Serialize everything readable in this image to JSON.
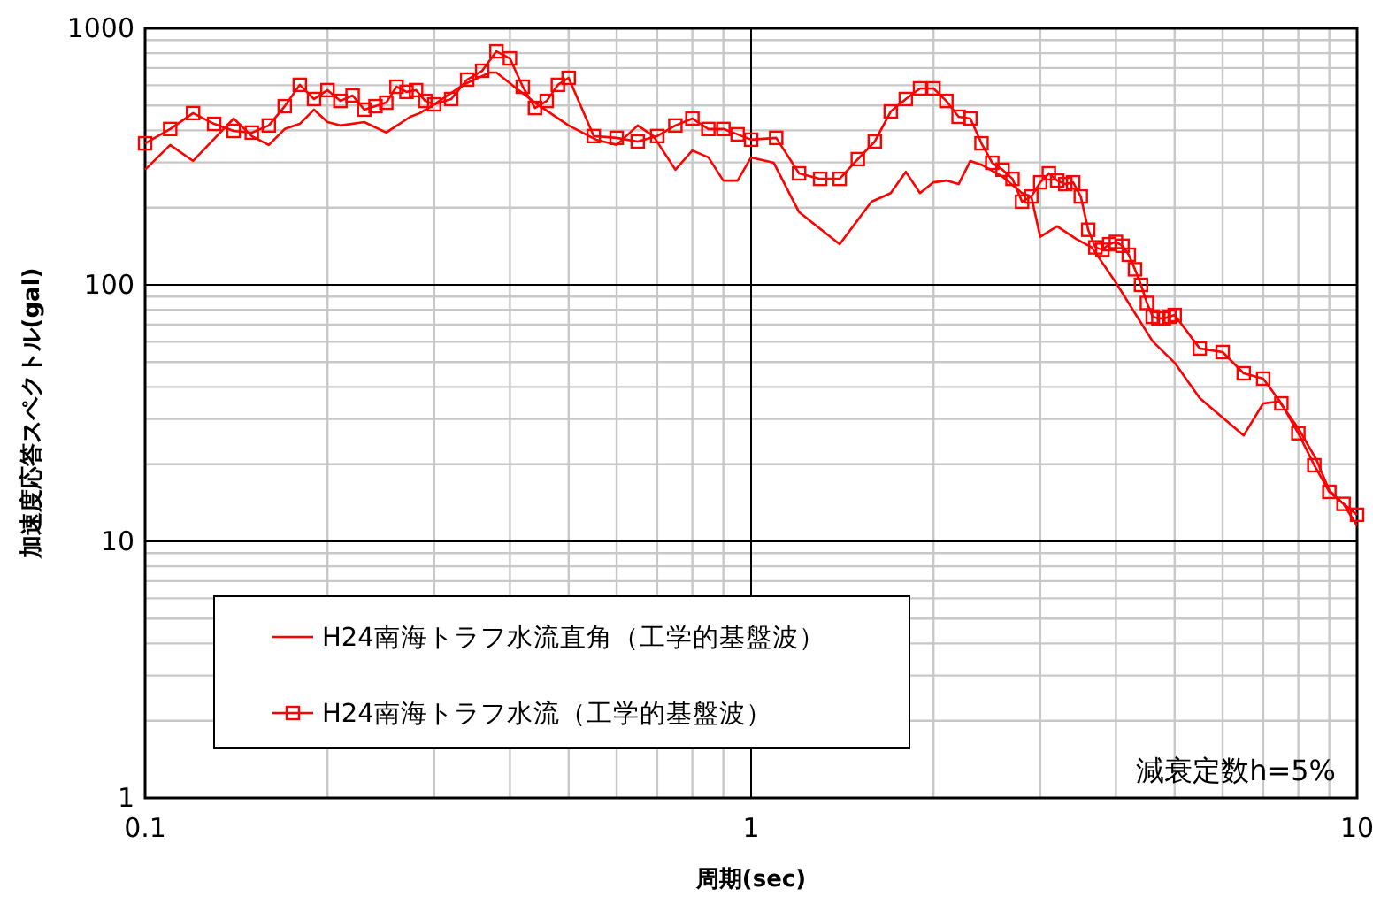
{
  "chart_data": {
    "type": "line",
    "xlabel": "周期(sec)",
    "ylabel": "加速度応答スペクトル(gal)",
    "log": "xy",
    "xlim": [
      0.1,
      10
    ],
    "ylim": [
      1,
      1000
    ],
    "xticks": [
      0.1,
      1,
      10
    ],
    "yticks": [
      1,
      10,
      100,
      1000
    ],
    "grid": true,
    "legend": "bottom left",
    "annotations": [
      "減衰定数h=5%"
    ],
    "series": [
      {
        "name": "H24南海トラフ水流直角（工学的基盤波）",
        "color": "#ff0000",
        "marker": "none",
        "x": [
          0.1,
          0.11,
          0.12,
          0.14,
          0.15,
          0.16,
          0.17,
          0.18,
          0.19,
          0.2,
          0.21,
          0.23,
          0.25,
          0.274,
          0.284,
          0.3,
          0.335,
          0.37,
          0.38,
          0.41,
          0.44,
          0.5,
          0.555,
          0.6,
          0.65,
          0.69,
          0.75,
          0.8,
          0.85,
          0.9,
          0.95,
          1.0,
          1.09,
          1.2,
          1.4,
          1.58,
          1.7,
          1.8,
          1.9,
          2.0,
          2.1,
          2.2,
          2.3,
          2.4,
          2.6,
          2.8,
          2.9,
          3.0,
          3.2,
          3.44,
          3.65,
          4.0,
          4.3,
          4.6,
          5.0,
          5.5,
          6.5,
          7.0,
          7.44,
          8.0,
          8.57,
          9.0,
          9.5,
          10
        ],
        "values": [
          281,
          351,
          304,
          445,
          380,
          351,
          405,
          424,
          482,
          431,
          418,
          431,
          392,
          452,
          467,
          505,
          602,
          672,
          672,
          583,
          513,
          418,
          368,
          351,
          418,
          380,
          281,
          334,
          314,
          255,
          255,
          314,
          299,
          192,
          144,
          211,
          228,
          276,
          228,
          251,
          255,
          247,
          304,
          294,
          264,
          228,
          221,
          154,
          169,
          151,
          140,
          102,
          77.6,
          60.2,
          49.7,
          36.2,
          25.9,
          34.5,
          35.1,
          27.6,
          20.8,
          15.8,
          14.0,
          11.5
        ]
      },
      {
        "name": "H24南海トラフ水流（工学的基盤波）",
        "color": "#ff0000",
        "marker": "square",
        "x": [
          0.1,
          0.11,
          0.12,
          0.13,
          0.14,
          0.15,
          0.16,
          0.17,
          0.18,
          0.19,
          0.2,
          0.21,
          0.22,
          0.23,
          0.24,
          0.25,
          0.26,
          0.27,
          0.28,
          0.29,
          0.3,
          0.32,
          0.34,
          0.36,
          0.38,
          0.4,
          0.42,
          0.44,
          0.46,
          0.48,
          0.5,
          0.55,
          0.6,
          0.65,
          0.7,
          0.75,
          0.8,
          0.85,
          0.9,
          0.95,
          1.0,
          1.1,
          1.2,
          1.3,
          1.4,
          1.5,
          1.6,
          1.7,
          1.8,
          1.9,
          2.0,
          2.1,
          2.2,
          2.3,
          2.4,
          2.5,
          2.6,
          2.7,
          2.8,
          2.9,
          3.0,
          3.1,
          3.2,
          3.3,
          3.4,
          3.5,
          3.6,
          3.7,
          3.8,
          3.9,
          4.0,
          4.1,
          4.2,
          4.3,
          4.4,
          4.5,
          4.6,
          4.7,
          4.8,
          4.9,
          5.0,
          5.5,
          6.0,
          6.5,
          7.0,
          7.5,
          8.0,
          8.5,
          9.0,
          9.5,
          10
        ],
        "values": [
          356,
          405,
          467,
          424,
          398,
          392,
          418,
          497,
          602,
          530,
          574,
          521,
          547,
          482,
          497,
          513,
          592,
          565,
          574,
          521,
          505,
          530,
          631,
          683,
          813,
          763,
          592,
          489,
          521,
          602,
          641,
          380,
          374,
          362,
          380,
          418,
          445,
          405,
          405,
          386,
          368,
          374,
          272,
          259,
          259,
          309,
          362,
          474,
          530,
          583,
          583,
          521,
          452,
          445,
          356,
          299,
          281,
          259,
          211,
          221,
          251,
          272,
          255,
          247,
          251,
          221,
          164,
          140,
          137,
          144,
          147,
          142,
          131,
          115,
          100,
          85,
          75.1,
          74.0,
          74.0,
          75.1,
          76.3,
          56.5,
          54.7,
          45.2,
          43.1,
          34.5,
          26.4,
          19.8,
          15.6,
          14.0,
          12.7
        ]
      }
    ]
  }
}
